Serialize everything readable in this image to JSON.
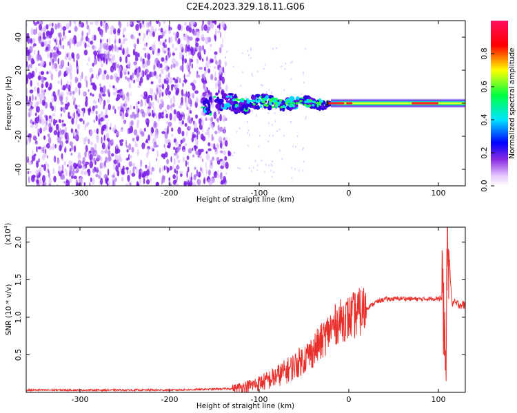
{
  "title": "C2E4.2023.329.18.11.G06",
  "chart_data": [
    {
      "type": "heatmap",
      "xlabel": "Height of straight line (km)",
      "ylabel": "Frequency (Hz)",
      "xlim": [
        -360,
        130
      ],
      "ylim": [
        -50,
        50
      ],
      "x_ticks": [
        -300,
        -200,
        -100,
        0,
        100
      ],
      "y_ticks": [
        -40,
        -20,
        0,
        20,
        40
      ],
      "grid": false,
      "colorbar": {
        "label": "Normalized spectral amplitude",
        "range": [
          0.0,
          1.0
        ],
        "ticks": [
          0.0,
          0.2,
          0.4,
          0.6,
          0.8
        ],
        "colors": [
          "#ffffff",
          "#e8c8ff",
          "#8a2be2",
          "#0000ff",
          "#00e5ff",
          "#00ff40",
          "#ffff00",
          "#ff0000",
          "#ff1060"
        ]
      },
      "features": {
        "broadband_noise_x_range": [
          -360,
          -140
        ],
        "line_center_frequency_hz": 0,
        "transition_x_range": [
          -140,
          -20
        ],
        "strong_line_x_range": [
          -20,
          130
        ]
      }
    },
    {
      "type": "line",
      "xlabel": "Height of straight line (km)",
      "ylabel": "SNR (10 * v/v)",
      "exponent_label": "(x10",
      "exponent_power": "4",
      "xlim": [
        -360,
        130
      ],
      "ylim": [
        0,
        2.2
      ],
      "x_ticks": [
        -300,
        -200,
        -100,
        0,
        100
      ],
      "y_ticks": [
        0.5,
        1.0,
        1.5,
        2.0
      ],
      "y_tick_labels": [
        "0.5",
        "1.0",
        "1.5",
        "2.0"
      ],
      "color": "#e8302c",
      "series": [
        {
          "x": [
            -360,
            -300,
            -250,
            -200,
            -160,
            -130,
            -110,
            -100,
            -90,
            -80,
            -70,
            -60,
            -50,
            -40,
            -30,
            -20,
            -10,
            0,
            10,
            20,
            30,
            40,
            60,
            80,
            95,
            100,
            105,
            108,
            110,
            115,
            120,
            130
          ],
          "y": [
            0.03,
            0.03,
            0.03,
            0.03,
            0.04,
            0.05,
            0.09,
            0.12,
            0.16,
            0.22,
            0.28,
            0.36,
            0.45,
            0.55,
            0.68,
            0.85,
            0.95,
            0.99,
            1.05,
            1.12,
            1.2,
            1.24,
            1.25,
            1.24,
            1.25,
            1.26,
            1.24,
            0.1,
            2.2,
            1.2,
            1.18,
            1.16
          ]
        }
      ]
    }
  ]
}
